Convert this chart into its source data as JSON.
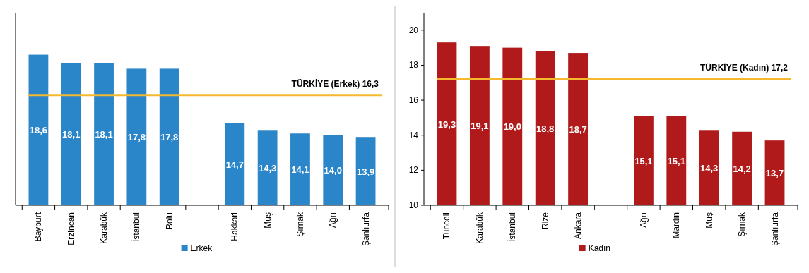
{
  "chart_data": [
    {
      "type": "bar",
      "categories": [
        "Bayburt",
        "Erzincan",
        "Karabük",
        "İstanbul",
        "Bolu",
        null,
        "Hakkari",
        "Muş",
        "Şırnak",
        "Ağrı",
        "Şanlıurfa"
      ],
      "series": [
        {
          "name": "Erkek",
          "color": "#2a86c9",
          "values": [
            18.6,
            18.1,
            18.1,
            17.8,
            17.8,
            null,
            14.7,
            14.3,
            14.1,
            14.0,
            13.9
          ],
          "value_labels": [
            "18,6",
            "18,1",
            "18,1",
            "17,8",
            "17,8",
            null,
            "14,7",
            "14,3",
            "14,1",
            "14,0",
            "13,9"
          ]
        }
      ],
      "ylim": [
        10,
        21
      ],
      "tick_labels": "x",
      "legend": "bottom",
      "ref_lines": [
        {
          "axis": "y",
          "value": 16.3,
          "label": "TÜRKİYE (Erkek) 16,3",
          "color": "#f5b82e"
        }
      ]
    },
    {
      "type": "bar",
      "categories": [
        "Tunceli",
        "Karabük",
        "İstanbul",
        "Rize",
        "Ankara",
        null,
        "Ağrı",
        "Mardin",
        "Muş",
        "Şırnak",
        "Şanlıurfa"
      ],
      "series": [
        {
          "name": "Kadın",
          "color": "#b01a1a",
          "values": [
            19.3,
            19.1,
            19.0,
            18.8,
            18.7,
            null,
            15.1,
            15.1,
            14.3,
            14.2,
            13.7
          ],
          "value_labels": [
            "19,3",
            "19,1",
            "19,0",
            "18,8",
            "18,7",
            null,
            "15,1",
            "15,1",
            "14,3",
            "14,2",
            "13,7"
          ]
        }
      ],
      "ylim": [
        10,
        21
      ],
      "yticks": [
        10,
        12,
        14,
        16,
        18,
        20
      ],
      "legend": "bottom",
      "ref_lines": [
        {
          "axis": "y",
          "value": 17.2,
          "label": "TÜRKİYE (Kadın) 17,2",
          "color": "#f5b82e"
        }
      ]
    }
  ]
}
